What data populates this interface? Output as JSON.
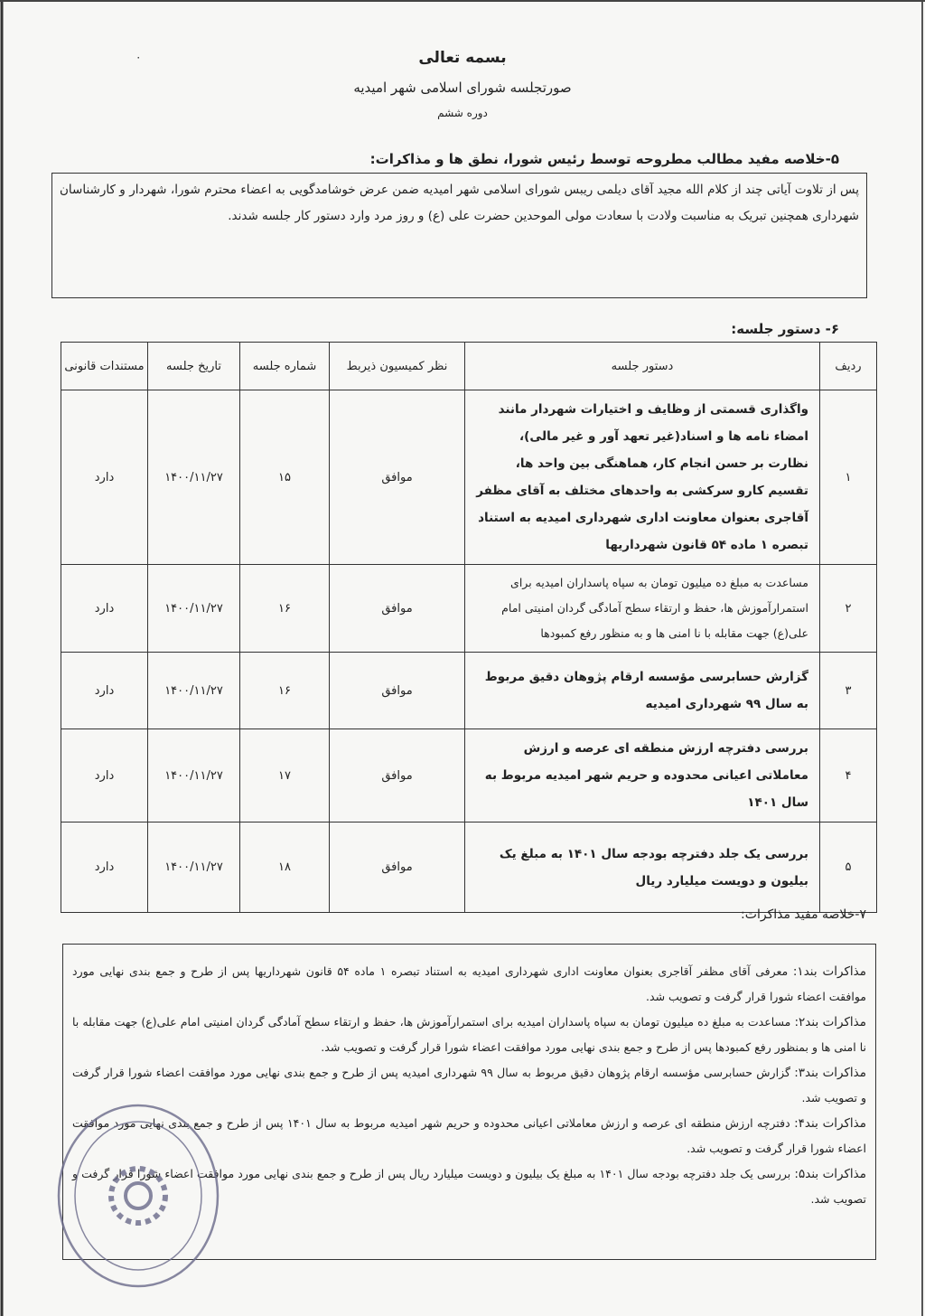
{
  "header": {
    "mark": "٠",
    "invocation": "بسمه تعالی",
    "title": "صورتجلسه شورای اسلامی شهر امیدیه",
    "term": "دوره ششم"
  },
  "section5": {
    "heading": "۵-خلاصه مفید مطالب مطروحه توسط رئیس شورا، نطق ها و مذاکرات:",
    "text": "پس از تلاوت آیاتی چند از کلام الله مجید آقای دیلمی ریبس شورای اسلامی شهر امیدیه ضمن عرض خوشامدگویی به اعضاء محترم شورا، شهردار و کارشناسان شهرداری همچنین تبریک به مناسبت ولادت با سعادت مولی الموحدین حضرت علی (ع) و روز مرد وارد دستور کار جلسه شدند."
  },
  "section6": {
    "heading": "۶- دستور جلسه:",
    "columns": [
      "ردیف",
      "دستور جلسه",
      "نظر کمیسیون ذیربط",
      "شماره جلسه",
      "تاریخ جلسه",
      "مستندات قانونی"
    ],
    "rows": [
      {
        "num": "۱",
        "agenda": "واگذاری قسمتی از وظایف و اختیارات شهردار مانند امضاء نامه ها و اسناد(غیر تعهد آور و غیر مالی)، نظارت بر حسن انجام کار، هماهنگی بین واحد ها، تقسیم کارو سرکشی به واحدهای مختلف به آقای مظفر آقاجری بعنوان معاونت اداری شهرداری امیدیه به استناد تبصره ۱ ماده ۵۴ قانون شهرداریها",
        "opinion": "موافق",
        "session": "۱۵",
        "date": "۱۴۰۰/۱۱/۲۷",
        "legal": "دارد"
      },
      {
        "num": "۲",
        "agenda": "مساعدت به مبلغ ده میلیون تومان به سپاه پاسداران امیدیه برای استمرارآموزش ها، حفظ و ارتقاء سطح آمادگی گردان امنیتی امام علی(ع) جهت مقابله با نا امنی ها و به منظور رفع کمبودها",
        "opinion": "موافق",
        "session": "۱۶",
        "date": "۱۴۰۰/۱۱/۲۷",
        "legal": "دارد"
      },
      {
        "num": "۳",
        "agenda": "گزارش حسابرسی مؤسسه ارقام پژوهان دقیق مربوط به سال ۹۹ شهرداری امیدیه",
        "opinion": "موافق",
        "session": "۱۶",
        "date": "۱۴۰۰/۱۱/۲۷",
        "legal": "دارد"
      },
      {
        "num": "۴",
        "agenda": "بررسی دفترچه ارزش منطقه ای عرصه و ارزش معاملاتی اعیانی محدوده و حریم شهر امیدیه مربوط به سال ۱۴۰۱",
        "opinion": "موافق",
        "session": "۱۷",
        "date": "۱۴۰۰/۱۱/۲۷",
        "legal": "دارد"
      },
      {
        "num": "۵",
        "agenda": "بررسی یک جلد دفترچه بودجه سال ۱۴۰۱ به مبلغ یک بیلیون و دویست میلیارد ریال",
        "opinion": "موافق",
        "session": "۱۸",
        "date": "۱۴۰۰/۱۱/۲۷",
        "legal": "دارد"
      }
    ]
  },
  "section7": {
    "heading": "۷-خلاصه مفید مذاکرات:",
    "items": [
      {
        "label": "مذاکرات بند۱:",
        "text": "معرفی آقای مظفر آقاجری بعنوان معاونت اداری شهرداری امیدیه به استناد تبصره ۱ ماده ۵۴ قانون شهرداریها پس از طرح و جمع بندی نهایی مورد موافقت اعضاء شورا قرار گرفت و تصویب شد."
      },
      {
        "label": "مذاکرات بند۲:",
        "text": "مساعدت به مبلغ ده میلیون تومان به سپاه پاسداران امیدیه برای استمرارآموزش ها، حفظ و ارتقاء سطح آمادگی گردان امنیتی امام علی(ع) جهت مقابله با نا امنی ها و بمنظور رفع کمبودها پس از طرح و جمع بندی نهایی مورد موافقت اعضاء شورا قرار گرفت و تصویب شد."
      },
      {
        "label": "مذاکرات بند۳:",
        "text": "گزارش حسابرسی مؤسسه ارقام پژوهان دقیق مربوط به سال ۹۹ شهرداری امیدیه پس از طرح و جمع بندی نهایی مورد موافقت اعضاء شورا قرار گرفت و تصویب شد."
      },
      {
        "label": "مذاکرات بند۴:",
        "text": "دفترچه ارزش منطقه ای عرصه و ارزش معاملاتی اعیانی محدوده و حریم شهر امیدیه مربوط به سال ۱۴۰۱ پس از طرح و جمع بندی نهایی مورد موافقت اعضاء شورا قرار گرفت و تصویب شد."
      },
      {
        "label": "مذاکرات بند۵:",
        "text": "بررسی یک جلد دفترچه بودجه سال ۱۴۰۱ به مبلغ یک بیلیون و دویست میلیارد ریال پس از طرح و جمع بندی نهایی مورد موافقت اعضاء شورا قرار گرفت و تصویب شد."
      }
    ]
  },
  "stamp": {
    "text": "شورای اسلامی شهر امیدیه - دوره ششم",
    "color": "#6b6a8a"
  }
}
